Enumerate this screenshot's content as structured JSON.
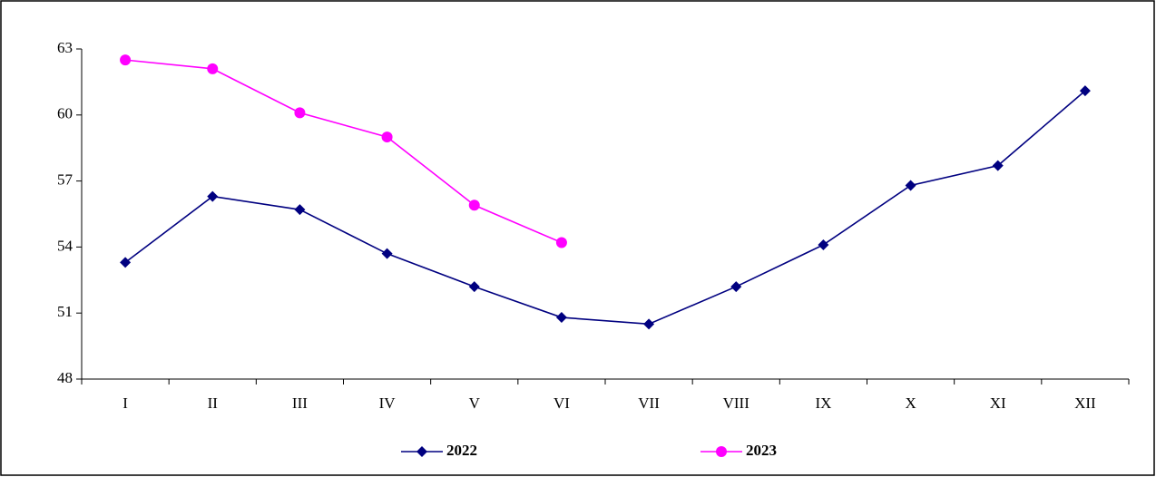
{
  "chart_data": {
    "type": "line",
    "categories": [
      "I",
      "II",
      "III",
      "IV",
      "V",
      "VI",
      "VII",
      "VIII",
      "IX",
      "X",
      "XI",
      "XII"
    ],
    "series": [
      {
        "name": "2022",
        "color": "#000080",
        "marker": "diamond",
        "values": [
          53.3,
          56.3,
          55.7,
          53.7,
          52.2,
          50.8,
          50.5,
          52.2,
          54.1,
          56.8,
          57.7,
          61.1
        ]
      },
      {
        "name": "2023",
        "color": "#ff00ff",
        "marker": "circle",
        "values": [
          62.5,
          62.1,
          60.1,
          59.0,
          55.9,
          54.2,
          null,
          null,
          null,
          null,
          null,
          null
        ]
      }
    ],
    "ylim": [
      48,
      63
    ],
    "yticks": [
      48,
      51,
      54,
      57,
      60,
      63
    ],
    "grid": false,
    "legend": "bottom"
  }
}
